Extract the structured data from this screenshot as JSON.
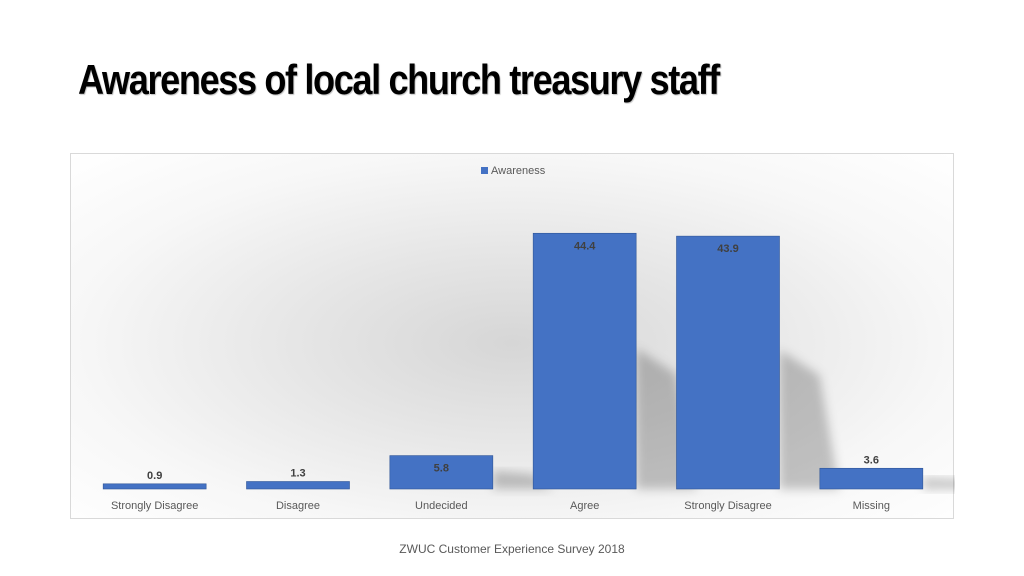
{
  "title": "Awareness of local church treasury staff",
  "footer": "ZWUC Customer Experience Survey 2018",
  "colors": {
    "bar": "#4472C4",
    "bar_edge": "#2F5597",
    "text": "#404040",
    "axis_text": "#595959"
  },
  "chart_data": {
    "type": "bar",
    "title": "",
    "xlabel": "",
    "ylabel": "",
    "categories": [
      "Strongly Disagree",
      "Disagree",
      "Undecided",
      "Agree",
      "Strongly Disagree",
      "Missing"
    ],
    "series": [
      {
        "name": "Awareness",
        "values": [
          0.9,
          1.3,
          5.8,
          44.4,
          43.9,
          3.6
        ]
      }
    ],
    "data_labels": [
      "0.9",
      "1.3",
      "5.8",
      "44.4",
      "43.9",
      "3.6"
    ],
    "ylim": [
      0,
      50
    ],
    "grid": false,
    "legend": "top-center"
  }
}
